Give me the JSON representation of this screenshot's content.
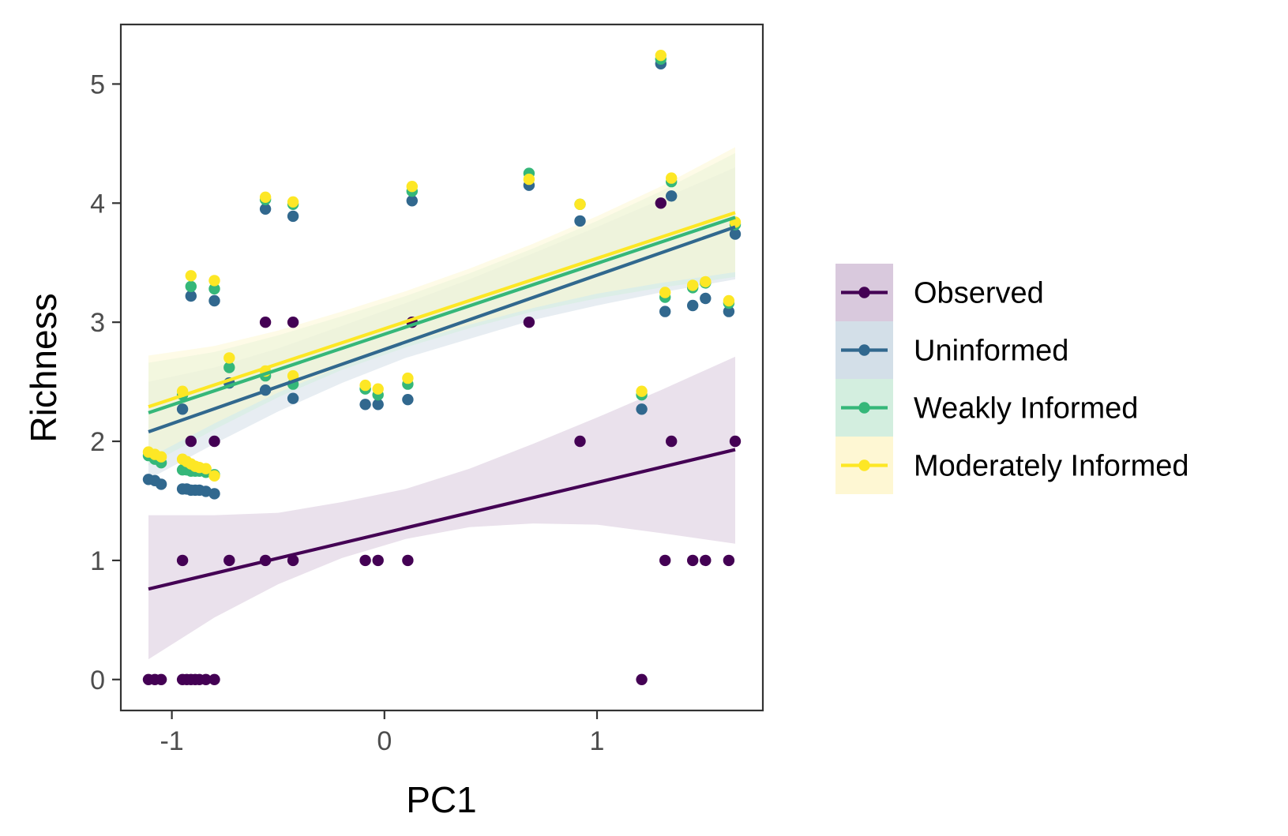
{
  "chart_data": {
    "type": "scatter",
    "xlabel": "PC1",
    "ylabel": "Richness",
    "xlim": [
      -1.24,
      1.78
    ],
    "ylim": [
      -0.26,
      5.5
    ],
    "x_ticks": [
      -1,
      0,
      1
    ],
    "y_ticks": [
      0,
      1,
      2,
      3,
      4,
      5
    ],
    "grid": false,
    "legend_position": "right",
    "series": [
      {
        "name": "Observed",
        "color": "#440154",
        "band_color": "#d9c9dd",
        "fit": {
          "x": [
            -1.11,
            1.65
          ],
          "y": [
            0.76,
            1.93
          ]
        },
        "band": {
          "x": [
            -1.11,
            -0.8,
            -0.5,
            -0.2,
            0.1,
            0.4,
            0.7,
            1.0,
            1.3,
            1.65
          ],
          "lower": [
            0.17,
            0.52,
            0.8,
            1.02,
            1.18,
            1.28,
            1.31,
            1.3,
            1.23,
            1.14
          ],
          "upper": [
            1.38,
            1.38,
            1.4,
            1.49,
            1.6,
            1.77,
            1.98,
            2.2,
            2.43,
            2.71
          ]
        },
        "points": [
          [
            -1.11,
            0
          ],
          [
            -1.08,
            0
          ],
          [
            -1.05,
            0
          ],
          [
            -0.95,
            0
          ],
          [
            -0.93,
            0
          ],
          [
            -0.91,
            0
          ],
          [
            -0.89,
            0
          ],
          [
            -0.87,
            0
          ],
          [
            -0.84,
            0
          ],
          [
            -0.8,
            0
          ],
          [
            -0.95,
            1
          ],
          [
            -0.91,
            2
          ],
          [
            -0.8,
            2
          ],
          [
            -0.73,
            1
          ],
          [
            -0.56,
            3
          ],
          [
            -0.43,
            3
          ],
          [
            -0.56,
            1
          ],
          [
            -0.43,
            1
          ],
          [
            -0.09,
            1
          ],
          [
            -0.03,
            1
          ],
          [
            0.11,
            1
          ],
          [
            0.13,
            3
          ],
          [
            0.68,
            3
          ],
          [
            0.92,
            2
          ],
          [
            1.21,
            0
          ],
          [
            1.3,
            4
          ],
          [
            1.32,
            1
          ],
          [
            1.35,
            2
          ],
          [
            1.45,
            1
          ],
          [
            1.51,
            1
          ],
          [
            1.62,
            1
          ],
          [
            1.65,
            2
          ]
        ]
      },
      {
        "name": "Uninformed",
        "color": "#31688e",
        "band_color": "#d3dfe8",
        "fit": {
          "x": [
            -1.11,
            1.65
          ],
          "y": [
            2.08,
            3.8
          ]
        },
        "band": {
          "x": [
            -1.11,
            -0.8,
            -0.5,
            -0.2,
            0.1,
            0.4,
            0.7,
            1.0,
            1.3,
            1.65
          ],
          "lower": [
            1.68,
            1.98,
            2.25,
            2.49,
            2.7,
            2.86,
            3.02,
            3.14,
            3.25,
            3.36
          ],
          "upper": [
            2.5,
            2.62,
            2.78,
            2.97,
            3.16,
            3.36,
            3.58,
            3.8,
            4.03,
            4.3
          ]
        },
        "points": [
          [
            -1.11,
            1.68
          ],
          [
            -1.08,
            1.67
          ],
          [
            -1.05,
            1.64
          ],
          [
            -0.95,
            1.6
          ],
          [
            -0.93,
            1.6
          ],
          [
            -0.91,
            1.59
          ],
          [
            -0.89,
            1.59
          ],
          [
            -0.87,
            1.59
          ],
          [
            -0.84,
            1.58
          ],
          [
            -0.8,
            1.56
          ],
          [
            -0.95,
            2.27
          ],
          [
            -0.91,
            3.22
          ],
          [
            -0.8,
            3.18
          ],
          [
            -0.73,
            2.49
          ],
          [
            -0.56,
            3.95
          ],
          [
            -0.43,
            3.89
          ],
          [
            -0.56,
            2.43
          ],
          [
            -0.43,
            2.36
          ],
          [
            -0.09,
            2.31
          ],
          [
            -0.03,
            2.31
          ],
          [
            0.11,
            2.35
          ],
          [
            0.13,
            4.02
          ],
          [
            0.68,
            4.15
          ],
          [
            0.92,
            3.85
          ],
          [
            1.21,
            2.27
          ],
          [
            1.3,
            5.17
          ],
          [
            1.32,
            3.09
          ],
          [
            1.35,
            4.06
          ],
          [
            1.45,
            3.14
          ],
          [
            1.51,
            3.2
          ],
          [
            1.62,
            3.09
          ],
          [
            1.65,
            3.74
          ]
        ]
      },
      {
        "name": "Weakly Informed",
        "color": "#35b779",
        "band_color": "#d3eedf",
        "fit": {
          "x": [
            -1.11,
            1.65
          ],
          "y": [
            2.24,
            3.88
          ]
        },
        "band": {
          "x": [
            -1.11,
            -0.8,
            -0.5,
            -0.2,
            0.1,
            0.4,
            0.7,
            1.0,
            1.3,
            1.65
          ],
          "lower": [
            1.8,
            2.1,
            2.37,
            2.6,
            2.79,
            2.95,
            3.09,
            3.2,
            3.29,
            3.38
          ],
          "upper": [
            2.66,
            2.75,
            2.89,
            3.05,
            3.22,
            3.41,
            3.62,
            3.85,
            4.1,
            4.42
          ]
        },
        "points": [
          [
            -1.11,
            1.88
          ],
          [
            -1.08,
            1.85
          ],
          [
            -1.05,
            1.82
          ],
          [
            -0.95,
            1.76
          ],
          [
            -0.93,
            1.76
          ],
          [
            -0.91,
            1.75
          ],
          [
            -0.89,
            1.75
          ],
          [
            -0.87,
            1.75
          ],
          [
            -0.84,
            1.74
          ],
          [
            -0.8,
            1.72
          ],
          [
            -0.95,
            2.39
          ],
          [
            -0.91,
            3.3
          ],
          [
            -0.8,
            3.28
          ],
          [
            -0.73,
            2.62
          ],
          [
            -0.56,
            2.55
          ],
          [
            -0.43,
            2.48
          ],
          [
            -0.56,
            4.03
          ],
          [
            -0.43,
            3.99
          ],
          [
            -0.09,
            2.44
          ],
          [
            -0.03,
            2.39
          ],
          [
            0.11,
            2.48
          ],
          [
            0.13,
            4.1
          ],
          [
            0.68,
            4.25
          ],
          [
            0.92,
            3.99
          ],
          [
            1.21,
            2.39
          ],
          [
            1.3,
            5.21
          ],
          [
            1.32,
            3.21
          ],
          [
            1.35,
            4.18
          ],
          [
            1.45,
            3.29
          ],
          [
            1.51,
            3.33
          ],
          [
            1.62,
            3.16
          ],
          [
            1.65,
            3.82
          ]
        ]
      },
      {
        "name": "Moderately Informed",
        "color": "#fde725",
        "band_color": "#fef7d3",
        "fit": {
          "x": [
            -1.11,
            1.65
          ],
          "y": [
            2.29,
            3.92
          ]
        },
        "band": {
          "x": [
            -1.11,
            -0.8,
            -0.5,
            -0.2,
            0.1,
            0.4,
            0.7,
            1.0,
            1.3,
            1.65
          ],
          "lower": [
            1.86,
            2.15,
            2.41,
            2.63,
            2.82,
            2.98,
            3.12,
            3.24,
            3.33,
            3.42
          ],
          "upper": [
            2.72,
            2.8,
            2.93,
            3.09,
            3.26,
            3.45,
            3.66,
            3.89,
            4.14,
            4.47
          ]
        },
        "points": [
          [
            -1.11,
            1.91
          ],
          [
            -1.08,
            1.89
          ],
          [
            -1.05,
            1.87
          ],
          [
            -0.95,
            1.85
          ],
          [
            -0.93,
            1.83
          ],
          [
            -0.91,
            1.81
          ],
          [
            -0.89,
            1.79
          ],
          [
            -0.87,
            1.78
          ],
          [
            -0.84,
            1.77
          ],
          [
            -0.8,
            1.71
          ],
          [
            -0.95,
            2.42
          ],
          [
            -0.91,
            3.39
          ],
          [
            -0.8,
            3.35
          ],
          [
            -0.73,
            2.7
          ],
          [
            -0.56,
            2.59
          ],
          [
            -0.43,
            2.55
          ],
          [
            -0.56,
            4.05
          ],
          [
            -0.43,
            4.01
          ],
          [
            -0.09,
            2.47
          ],
          [
            -0.03,
            2.44
          ],
          [
            0.11,
            2.53
          ],
          [
            0.13,
            4.14
          ],
          [
            0.68,
            4.2
          ],
          [
            0.92,
            3.99
          ],
          [
            1.21,
            2.42
          ],
          [
            1.3,
            5.24
          ],
          [
            1.32,
            3.25
          ],
          [
            1.35,
            4.21
          ],
          [
            1.45,
            3.31
          ],
          [
            1.51,
            3.34
          ],
          [
            1.62,
            3.18
          ],
          [
            1.65,
            3.84
          ]
        ]
      }
    ]
  }
}
